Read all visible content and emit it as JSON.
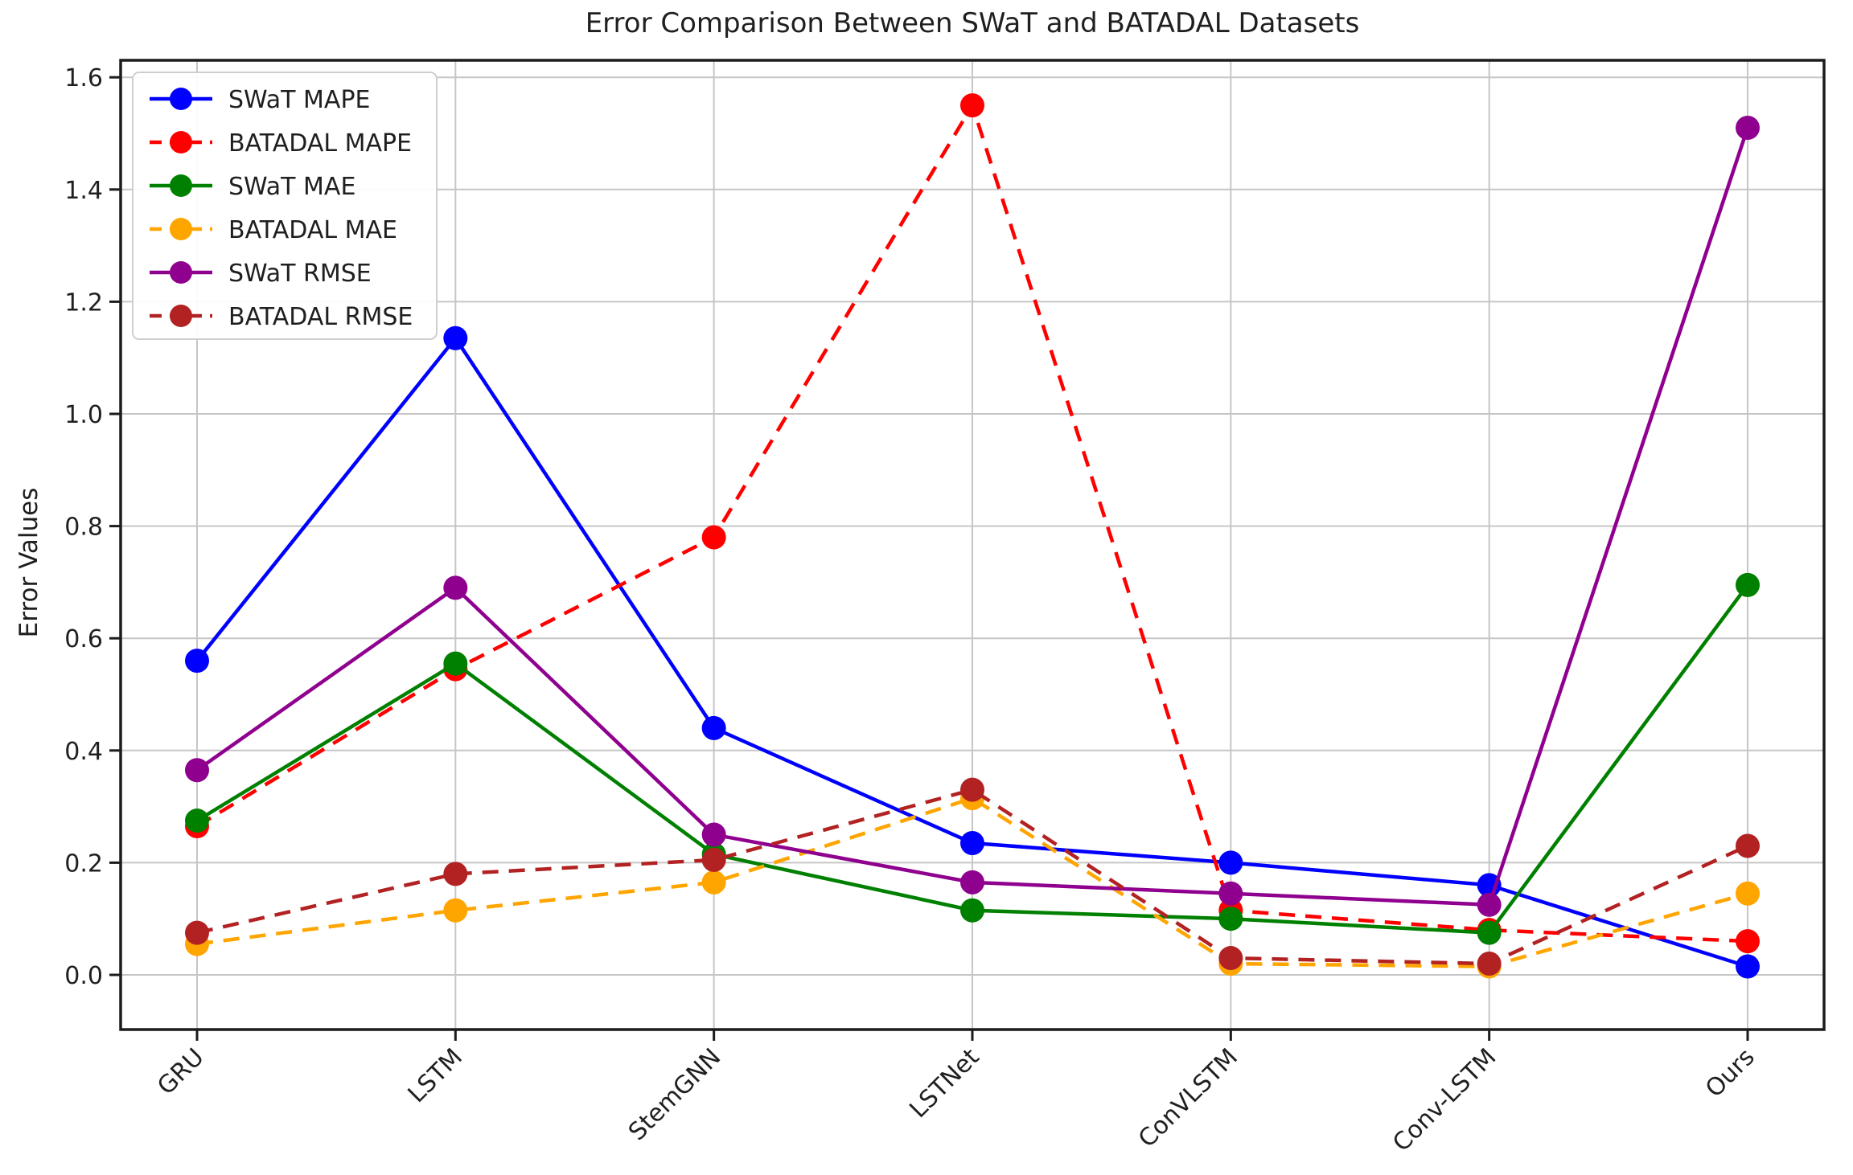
{
  "chart_data": {
    "type": "line",
    "title": "Error Comparison Between SWaT and BATADAL Datasets",
    "xlabel": "",
    "ylabel": "Error Values",
    "categories": [
      "GRU",
      "LSTM",
      "StemGNN",
      "LSTNet",
      "ConVLSTM",
      "Conv-LSTM",
      "Ours"
    ],
    "yticks": [
      0.0,
      0.2,
      0.4,
      0.6,
      0.8,
      1.0,
      1.2,
      1.4,
      1.6
    ],
    "ylim": [
      -0.097,
      1.63
    ],
    "grid": true,
    "legend_position": "upper left",
    "series": [
      {
        "name": "SWaT MAPE",
        "color": "#0000ff",
        "style": "solid",
        "values": [
          0.56,
          1.135,
          0.44,
          0.235,
          0.2,
          0.16,
          0.015
        ]
      },
      {
        "name": "BATADAL MAPE",
        "color": "#ff0000",
        "style": "dashed",
        "values": [
          0.265,
          0.545,
          0.78,
          1.55,
          0.115,
          0.08,
          0.06
        ]
      },
      {
        "name": "SWaT MAE",
        "color": "#008000",
        "style": "solid",
        "values": [
          0.275,
          0.555,
          0.215,
          0.115,
          0.1,
          0.075,
          0.695
        ]
      },
      {
        "name": "BATADAL MAE",
        "color": "#ffa500",
        "style": "dashed",
        "values": [
          0.055,
          0.115,
          0.165,
          0.315,
          0.02,
          0.015,
          0.145
        ]
      },
      {
        "name": "SWaT RMSE",
        "color": "#8f008f",
        "style": "solid",
        "values": [
          0.365,
          0.69,
          0.25,
          0.165,
          0.145,
          0.125,
          1.51
        ]
      },
      {
        "name": "BATADAL RMSE",
        "color": "#b22222",
        "style": "dashed",
        "values": [
          0.075,
          0.18,
          0.205,
          0.33,
          0.03,
          0.02,
          0.23
        ]
      }
    ]
  }
}
